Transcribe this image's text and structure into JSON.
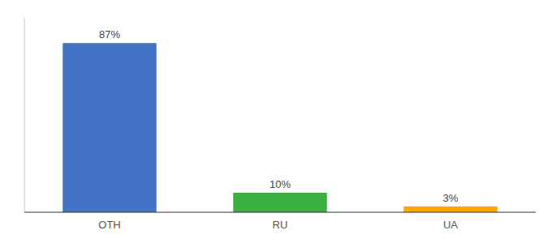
{
  "chart_data": {
    "type": "bar",
    "categories": [
      "OTH",
      "RU",
      "UA"
    ],
    "values": [
      87,
      10,
      3
    ],
    "value_labels": [
      "87%",
      "10%",
      "3%"
    ],
    "colors": [
      "#4472C4",
      "#3CB043",
      "#FFA500"
    ],
    "ylim": [
      0,
      100
    ],
    "data_labels": true,
    "tick_labels": "x"
  }
}
